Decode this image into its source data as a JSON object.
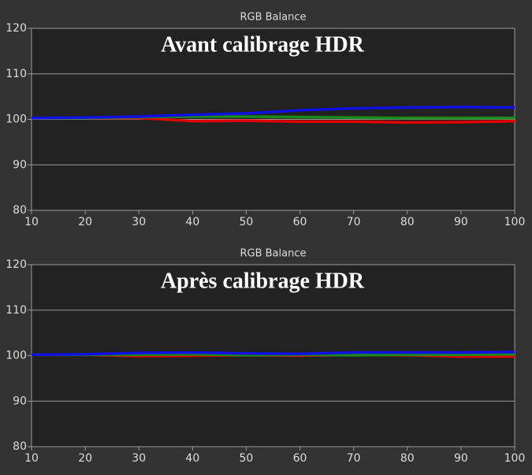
{
  "chart_data": [
    {
      "type": "line",
      "title": "RGB Balance",
      "annotation": "Avant calibrage HDR",
      "x": [
        10,
        20,
        30,
        40,
        50,
        60,
        70,
        80,
        90,
        100
      ],
      "series": [
        {
          "color": "#e00000",
          "values": [
            100.3,
            100.3,
            100.3,
            99.6,
            99.7,
            99.5,
            99.5,
            99.3,
            99.4,
            99.6
          ]
        },
        {
          "color": "#1a8a1a",
          "values": [
            100.3,
            100.3,
            100.5,
            100.6,
            100.6,
            100.5,
            100.4,
            100.3,
            100.3,
            100.3
          ]
        },
        {
          "color": "#1010e0",
          "values": [
            100.3,
            100.4,
            100.6,
            101.0,
            101.3,
            102.0,
            102.4,
            102.6,
            102.7,
            102.6
          ]
        }
      ],
      "xlim": [
        10,
        100
      ],
      "xticks": [
        10,
        20,
        30,
        40,
        50,
        60,
        70,
        80,
        90,
        100
      ],
      "ylim": [
        80,
        120
      ],
      "yticks": [
        80,
        90,
        100,
        110,
        120
      ],
      "grid": true
    },
    {
      "type": "line",
      "title": "RGB Balance",
      "annotation": "Après calibrage HDR",
      "x": [
        10,
        20,
        30,
        40,
        50,
        60,
        70,
        80,
        90,
        100
      ],
      "series": [
        {
          "color": "#e00000",
          "values": [
            100.2,
            100.2,
            99.9,
            100.0,
            100.1,
            100.0,
            100.2,
            100.1,
            99.8,
            99.8
          ]
        },
        {
          "color": "#1a8a1a",
          "values": [
            100.2,
            100.2,
            100.2,
            100.3,
            100.1,
            100.2,
            100.1,
            100.2,
            100.2,
            100.3
          ]
        },
        {
          "color": "#1010e0",
          "values": [
            100.2,
            100.3,
            100.6,
            100.7,
            100.5,
            100.4,
            100.7,
            100.7,
            100.7,
            100.8
          ]
        }
      ],
      "xlim": [
        10,
        100
      ],
      "xticks": [
        10,
        20,
        30,
        40,
        50,
        60,
        70,
        80,
        90,
        100
      ],
      "ylim": [
        80,
        120
      ],
      "yticks": [
        80,
        90,
        100,
        110,
        120
      ],
      "grid": true
    }
  ]
}
